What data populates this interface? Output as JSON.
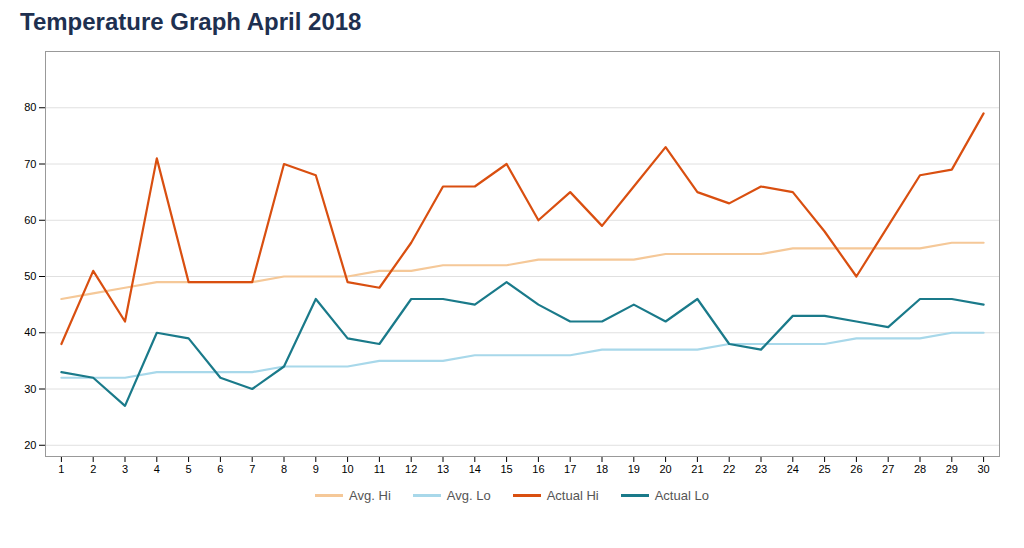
{
  "chart_data": {
    "type": "line",
    "title": "Temperature Graph April 2018",
    "x": [
      1,
      2,
      3,
      4,
      5,
      6,
      7,
      8,
      9,
      10,
      11,
      12,
      13,
      14,
      15,
      16,
      17,
      18,
      19,
      20,
      21,
      22,
      23,
      24,
      25,
      26,
      27,
      28,
      29,
      30
    ],
    "series": [
      {
        "name": "Avg. Hi",
        "color": "#f5c898",
        "values": [
          46,
          47,
          48,
          49,
          49,
          49,
          49,
          50,
          50,
          50,
          51,
          51,
          52,
          52,
          52,
          53,
          53,
          53,
          53,
          54,
          54,
          54,
          54,
          55,
          55,
          55,
          55,
          55,
          56,
          56
        ]
      },
      {
        "name": "Avg. Lo",
        "color": "#a8d8ea",
        "values": [
          32,
          32,
          32,
          33,
          33,
          33,
          33,
          34,
          34,
          34,
          35,
          35,
          35,
          36,
          36,
          36,
          36,
          37,
          37,
          37,
          37,
          38,
          38,
          38,
          38,
          39,
          39,
          39,
          40,
          40
        ]
      },
      {
        "name": "Actual Hi",
        "color": "#d94f10",
        "values": [
          38,
          51,
          42,
          71,
          49,
          49,
          49,
          70,
          68,
          49,
          48,
          56,
          66,
          66,
          70,
          60,
          65,
          59,
          66,
          73,
          65,
          63,
          66,
          65,
          58,
          50,
          59,
          68,
          69,
          79
        ]
      },
      {
        "name": "Actual Lo",
        "color": "#1a7a8a",
        "values": [
          33,
          32,
          27,
          40,
          39,
          32,
          30,
          34,
          46,
          39,
          38,
          46,
          46,
          45,
          49,
          45,
          42,
          42,
          45,
          42,
          46,
          38,
          37,
          43,
          43,
          42,
          41,
          46,
          46,
          45
        ]
      }
    ],
    "xlim": [
      0.5,
      30.5
    ],
    "xticks": [
      1,
      2,
      3,
      4,
      5,
      6,
      7,
      8,
      9,
      10,
      11,
      12,
      13,
      14,
      15,
      16,
      17,
      18,
      19,
      20,
      21,
      22,
      23,
      24,
      25,
      26,
      27,
      28,
      29,
      30
    ],
    "ylim": [
      18,
      90
    ],
    "yticks": [
      20,
      30,
      40,
      50,
      60,
      70,
      80
    ],
    "grid": true,
    "legend": "bottom"
  }
}
